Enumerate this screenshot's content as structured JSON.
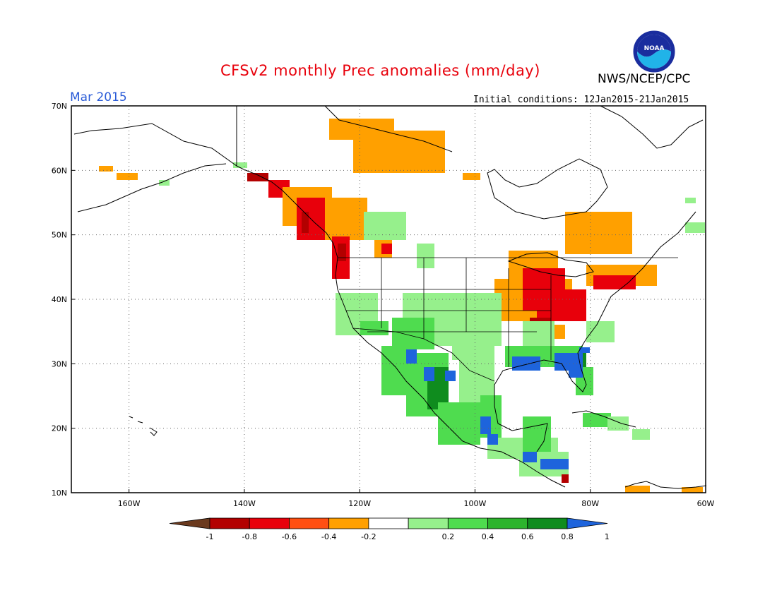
{
  "header": {
    "title": "CFSv2 monthly Prec anomalies (mm/day)",
    "agency": "NWS/NCEP/CPC",
    "period": "Mar 2015",
    "initial_conditions": "Initial conditions: 12Jan2015-21Jan2015",
    "logo_text": "NOAA"
  },
  "map": {
    "lat_labels": [
      "70N",
      "60N",
      "50N",
      "40N",
      "30N",
      "20N",
      "10N"
    ],
    "lon_labels": [
      "160W",
      "140W",
      "120W",
      "100W",
      "80W",
      "60W"
    ],
    "lat_range": [
      10,
      70
    ],
    "lon_range": [
      -170,
      -60
    ]
  },
  "legend": {
    "labels": [
      "-1",
      "-0.8",
      "-0.6",
      "-0.4",
      "-0.2",
      "0.2",
      "0.4",
      "0.6",
      "0.8",
      "1"
    ],
    "colors": [
      "#6b3a1e",
      "#b30000",
      "#e8000b",
      "#ff4f12",
      "#ffa000",
      "#ffffff",
      "#96f08c",
      "#4fdc4f",
      "#2db42d",
      "#0f8c1e",
      "#1e64dc"
    ]
  },
  "colors": {
    "title": "#e8000b",
    "period": "#2a5bd7",
    "dry_strong": "#b30000",
    "dry_mid": "#e8000b",
    "dry_light": "#ffa000",
    "wet_light": "#96f08c",
    "wet_mid": "#4fdc4f",
    "wet_strong": "#0f8c1e",
    "wet_max": "#1e64dc"
  }
}
